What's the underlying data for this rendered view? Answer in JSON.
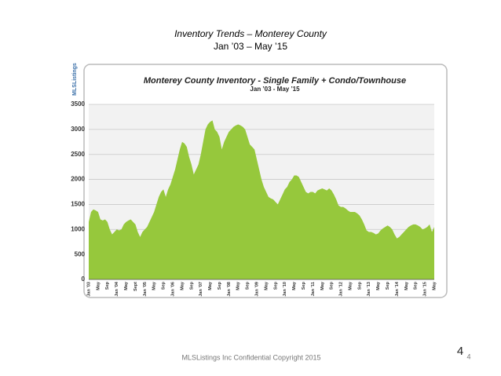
{
  "slide": {
    "title": "Inventory Trends – Monterey County",
    "subtitle": "Jan ’03 – May ’15",
    "footer": "MLSListings Inc Confidential Copyright 2015",
    "slide_number": "4",
    "page_number": "4"
  },
  "chart_data": {
    "type": "area",
    "logo": "MLSListings",
    "title": "Monterey County Inventory - Single Family + Condo/Townhouse",
    "subtitle": "Jan ’03 - May ’15",
    "color": "#96c83c",
    "grid": true,
    "ylim": [
      0,
      3500
    ],
    "yticks": [
      0,
      500,
      1000,
      1500,
      2000,
      2500,
      3000,
      3500
    ],
    "categories": [
      "Jan ’03",
      null,
      null,
      null,
      "May",
      null,
      null,
      null,
      "Sep",
      null,
      null,
      null,
      "Jan ’04",
      null,
      null,
      null,
      "May",
      null,
      null,
      null,
      "Sept",
      null,
      null,
      null,
      "Jan ’05",
      null,
      null,
      null,
      "May",
      null,
      null,
      null,
      "Sep",
      null,
      null,
      null,
      "Jan ’06",
      null,
      null,
      null,
      "May",
      null,
      null,
      null,
      "Sep",
      null,
      null,
      null,
      "Jan ’07",
      null,
      null,
      null,
      "May",
      null,
      null,
      null,
      "Sep",
      null,
      null,
      null,
      "Jan ’08",
      null,
      null,
      null,
      "May",
      null,
      null,
      null,
      "Sep",
      null,
      null,
      null,
      "Jan ’09",
      null,
      null,
      null,
      "May",
      null,
      null,
      null,
      "Sep",
      null,
      null,
      null,
      "Jan ’10",
      null,
      null,
      null,
      "May",
      null,
      null,
      null,
      "Sep",
      null,
      null,
      null,
      "Jan ’11",
      null,
      null,
      null,
      "May",
      null,
      null,
      null,
      "Sep",
      null,
      null,
      null,
      "Jan ’12",
      null,
      null,
      null,
      "May",
      null,
      null,
      null,
      "Sep",
      null,
      null,
      null,
      "Jan ’13",
      null,
      null,
      null,
      "May",
      null,
      null,
      null,
      "Sep",
      null,
      null,
      null,
      "Jan ’14",
      null,
      null,
      null,
      "May",
      null,
      null,
      null,
      "Sep",
      null,
      null,
      null,
      "Jan ’15",
      null,
      null,
      null,
      "May"
    ],
    "values": [
      1150,
      1350,
      1400,
      1380,
      1350,
      1200,
      1180,
      1200,
      1150,
      1000,
      900,
      950,
      1000,
      980,
      1000,
      1100,
      1150,
      1180,
      1200,
      1150,
      1100,
      950,
      850,
      950,
      1000,
      1050,
      1150,
      1250,
      1350,
      1500,
      1650,
      1750,
      1800,
      1650,
      1800,
      1900,
      2050,
      2200,
      2400,
      2600,
      2750,
      2720,
      2650,
      2450,
      2300,
      2100,
      2200,
      2300,
      2500,
      2750,
      3000,
      3100,
      3150,
      3180,
      3000,
      2950,
      2850,
      2600,
      2750,
      2850,
      2950,
      3000,
      3050,
      3080,
      3100,
      3080,
      3050,
      3000,
      2850,
      2700,
      2650,
      2600,
      2400,
      2200,
      2000,
      1850,
      1750,
      1650,
      1620,
      1600,
      1550,
      1500,
      1600,
      1700,
      1800,
      1850,
      1950,
      2000,
      2080,
      2080,
      2050,
      1950,
      1850,
      1750,
      1720,
      1750,
      1750,
      1720,
      1780,
      1800,
      1820,
      1800,
      1780,
      1820,
      1780,
      1700,
      1600,
      1480,
      1450,
      1450,
      1420,
      1380,
      1350,
      1350,
      1350,
      1320,
      1280,
      1200,
      1100,
      980,
      950,
      950,
      930,
      900,
      920,
      980,
      1020,
      1050,
      1080,
      1050,
      1000,
      900,
      820,
      850,
      900,
      950,
      1000,
      1050,
      1080,
      1100,
      1100,
      1080,
      1050,
      1000,
      1020,
      1050,
      1100,
      950,
      1050
    ]
  }
}
